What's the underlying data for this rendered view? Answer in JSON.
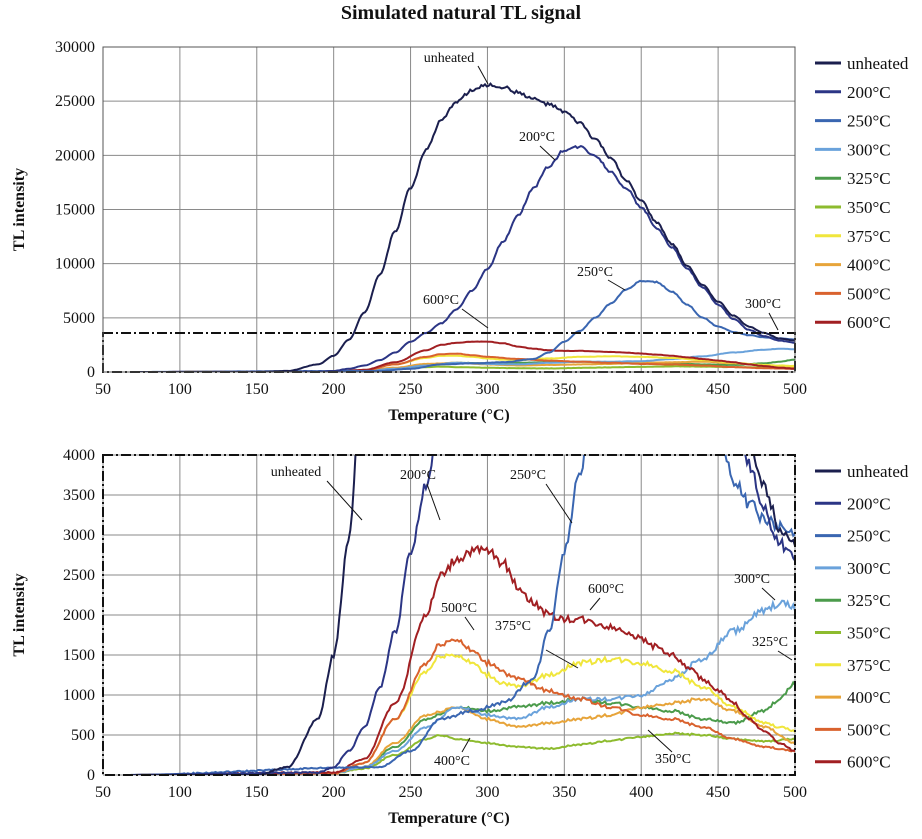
{
  "title": "Simulated natural TL signal",
  "colors": {
    "unheated": "#1b1f4e",
    "200°C": "#2b3585",
    "250°C": "#3a66b1",
    "300°C": "#6aa2db",
    "325°C": "#4b9b4b",
    "350°C": "#8dbb2e",
    "375°C": "#f0e63c",
    "400°C": "#e7a43a",
    "500°C": "#d9622e",
    "600°C": "#a11f22"
  },
  "chart_data": [
    {
      "type": "line",
      "xlabel": "Temperature (°C)",
      "ylabel": "TL intensity",
      "xlim": [
        50,
        500
      ],
      "ylim": [
        0,
        30000
      ],
      "xticks": [
        "50",
        "100",
        "150",
        "200",
        "250",
        "300",
        "350",
        "400",
        "450",
        "500"
      ],
      "yticks": [
        "0",
        "5000",
        "10000",
        "15000",
        "20000",
        "25000",
        "30000"
      ],
      "legend_position": "right",
      "grid": true,
      "series": [
        {
          "name": "unheated",
          "x": [
            60,
            150,
            170,
            190,
            200,
            210,
            220,
            230,
            240,
            250,
            260,
            270,
            280,
            290,
            300,
            310,
            320,
            330,
            340,
            350,
            360,
            370,
            380,
            390,
            400,
            410,
            420,
            430,
            440,
            450,
            460,
            470,
            480,
            490,
            500
          ],
          "y": [
            0,
            0,
            100,
            700,
            1500,
            3000,
            5500,
            9000,
            13000,
            17000,
            20500,
            23200,
            25000,
            26000,
            26500,
            26300,
            25800,
            25200,
            24700,
            24000,
            23000,
            21500,
            19800,
            17700,
            15800,
            13800,
            11800,
            9800,
            8000,
            6500,
            5200,
            4200,
            3600,
            3100,
            2900
          ]
        },
        {
          "name": "200°C",
          "x": [
            60,
            190,
            200,
            210,
            220,
            230,
            240,
            250,
            260,
            270,
            280,
            290,
            300,
            310,
            320,
            330,
            340,
            350,
            360,
            370,
            380,
            390,
            400,
            410,
            420,
            430,
            440,
            450,
            460,
            470,
            480,
            490,
            500
          ],
          "y": [
            0,
            30,
            100,
            300,
            600,
            1100,
            1800,
            2800,
            3600,
            4500,
            5800,
            7500,
            9500,
            12000,
            14500,
            17000,
            19000,
            20500,
            20800,
            20000,
            18500,
            17000,
            15200,
            13300,
            11500,
            9500,
            7800,
            6200,
            4900,
            3900,
            3300,
            2900,
            2700
          ]
        },
        {
          "name": "250°C",
          "x": [
            60,
            230,
            250,
            270,
            290,
            310,
            330,
            340,
            350,
            360,
            370,
            380,
            390,
            400,
            410,
            420,
            430,
            440,
            450,
            460,
            470,
            480,
            490,
            500
          ],
          "y": [
            0,
            100,
            300,
            700,
            800,
            900,
            1200,
            1800,
            2800,
            3800,
            5000,
            6300,
            7600,
            8400,
            8300,
            7400,
            6200,
            5000,
            4200,
            3700,
            3400,
            3200,
            3100,
            3000
          ]
        },
        {
          "name": "300°C",
          "x": [
            60,
            200,
            220,
            240,
            260,
            280,
            300,
            320,
            340,
            360,
            380,
            400,
            420,
            440,
            460,
            480,
            490,
            500
          ],
          "y": [
            0,
            20,
            100,
            300,
            600,
            850,
            750,
            700,
            850,
            950,
            950,
            1000,
            1200,
            1450,
            1800,
            2050,
            2150,
            2100
          ]
        },
        {
          "name": "325°C",
          "x": [
            60,
            200,
            220,
            240,
            260,
            280,
            300,
            320,
            340,
            360,
            380,
            400,
            420,
            440,
            460,
            480,
            490,
            500
          ],
          "y": [
            0,
            20,
            100,
            350,
            700,
            850,
            800,
            850,
            900,
            950,
            900,
            850,
            800,
            700,
            650,
            800,
            950,
            1150
          ]
        },
        {
          "name": "350°C",
          "x": [
            60,
            200,
            220,
            240,
            260,
            270,
            280,
            300,
            320,
            340,
            360,
            380,
            400,
            420,
            440,
            460,
            480,
            500
          ],
          "y": [
            0,
            20,
            80,
            250,
            450,
            500,
            450,
            400,
            350,
            330,
            380,
            430,
            480,
            520,
            500,
            450,
            420,
            450
          ]
        },
        {
          "name": "375°C",
          "x": [
            60,
            200,
            220,
            240,
            260,
            270,
            280,
            290,
            300,
            310,
            320,
            340,
            360,
            380,
            400,
            420,
            440,
            460,
            480,
            490,
            500
          ],
          "y": [
            0,
            20,
            150,
            700,
            1300,
            1500,
            1500,
            1400,
            1250,
            1150,
            1100,
            1250,
            1400,
            1450,
            1400,
            1300,
            1100,
            850,
            650,
            600,
            550
          ]
        },
        {
          "name": "400°C",
          "x": [
            60,
            200,
            220,
            240,
            260,
            280,
            300,
            320,
            340,
            360,
            380,
            400,
            420,
            440,
            460,
            480,
            500
          ],
          "y": [
            0,
            20,
            100,
            400,
            750,
            850,
            700,
            600,
            650,
            700,
            750,
            850,
            900,
            950,
            800,
            600,
            400
          ]
        },
        {
          "name": "500°C",
          "x": [
            60,
            200,
            220,
            240,
            260,
            270,
            280,
            290,
            300,
            320,
            340,
            360,
            380,
            400,
            420,
            440,
            460,
            480,
            500
          ],
          "y": [
            0,
            20,
            150,
            700,
            1400,
            1650,
            1700,
            1550,
            1400,
            1200,
            1050,
            950,
            850,
            750,
            700,
            600,
            450,
            350,
            300
          ]
        },
        {
          "name": "600°C",
          "x": [
            60,
            200,
            220,
            240,
            260,
            270,
            280,
            290,
            300,
            310,
            320,
            330,
            340,
            350,
            360,
            370,
            380,
            390,
            400,
            410,
            420,
            430,
            440,
            450,
            460,
            470,
            480,
            490,
            500
          ],
          "y": [
            0,
            30,
            200,
            900,
            2000,
            2500,
            2700,
            2800,
            2800,
            2650,
            2350,
            2150,
            2000,
            1950,
            1950,
            1900,
            1850,
            1800,
            1700,
            1600,
            1500,
            1350,
            1200,
            1050,
            900,
            700,
            550,
            400,
            300
          ]
        }
      ],
      "annotations": [
        "unheated",
        "200°C",
        "250°C",
        "300°C",
        "600°C"
      ]
    },
    {
      "type": "line",
      "xlabel": "Temperature (°C)",
      "ylabel": "TL intensity",
      "xlim": [
        50,
        500
      ],
      "ylim": [
        0,
        4000
      ],
      "xticks": [
        "50",
        "100",
        "150",
        "200",
        "250",
        "300",
        "350",
        "400",
        "450",
        "500"
      ],
      "yticks": [
        "0",
        "500",
        "1000",
        "1500",
        "2000",
        "2500",
        "3000",
        "3500",
        "4000"
      ],
      "legend_position": "right",
      "grid": true,
      "series_ref": "same series as upper chart, zoomed to 0–4000",
      "annotations": [
        "unheated",
        "200°C",
        "250°C",
        "300°C",
        "325°C",
        "350°C",
        "375°C",
        "400°C",
        "500°C",
        "600°C"
      ]
    }
  ]
}
